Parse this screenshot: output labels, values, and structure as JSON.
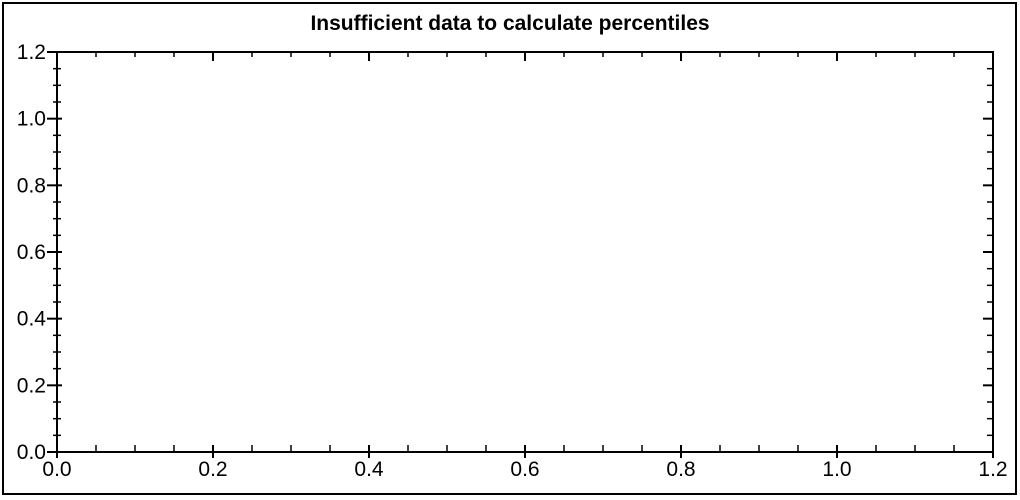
{
  "window": {
    "background": "#ffffff",
    "frame_color": "#000000"
  },
  "chart_data": {
    "type": "scatter",
    "title": "Insufficient data to calculate percentiles",
    "series": [],
    "xlabel": "",
    "ylabel": "",
    "xlim": [
      0.0,
      1.2
    ],
    "ylim": [
      0.0,
      1.2
    ],
    "x_major_ticks": [
      0.0,
      0.2,
      0.4,
      0.6,
      0.8,
      1.0,
      1.2
    ],
    "y_major_ticks": [
      0.0,
      0.2,
      0.4,
      0.6,
      0.8,
      1.0,
      1.2
    ],
    "x_tick_labels": [
      "0.0",
      "0.2",
      "0.4",
      "0.6",
      "0.8",
      "1.0",
      "1.2"
    ],
    "y_tick_labels": [
      "0.0",
      "0.2",
      "0.4",
      "0.6",
      "0.8",
      "1.0",
      "1.2"
    ],
    "minor_tick_step": 0.05,
    "grid": false,
    "legend": null,
    "axis_color": "#000000",
    "text_color": "#000000"
  }
}
